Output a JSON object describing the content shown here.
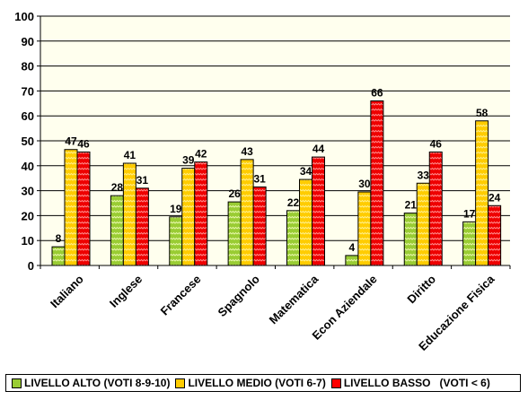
{
  "chart_data": {
    "type": "bar",
    "categories": [
      "Italiano",
      "Inglese",
      "Francese",
      "Spagnolo",
      "Matematica",
      "Econ Aziendale",
      "Diritto",
      "Educazione Fisica"
    ],
    "series": [
      {
        "name": "LIVELLO ALTO (VOTI 8-9-10)",
        "values": [
          8,
          28,
          19,
          26,
          22,
          4,
          21,
          17
        ],
        "plotted": [
          7.5,
          28,
          19.5,
          25.5,
          22,
          4,
          21,
          17.5
        ],
        "color": "#99cc33"
      },
      {
        "name": "LIVELLO MEDIO (VOTI 6-7)",
        "values": [
          47,
          41,
          39,
          43,
          34,
          30,
          33,
          58
        ],
        "plotted": [
          46.5,
          41,
          39,
          42.5,
          34.5,
          29.5,
          33,
          58
        ],
        "color": "#ffcc00"
      },
      {
        "name": "LIVELLO BASSO   (VOTI < 6)",
        "values": [
          46,
          31,
          42,
          31,
          44,
          66,
          46,
          24
        ],
        "plotted": [
          45.5,
          31,
          41.5,
          31.5,
          43.5,
          66,
          45.5,
          24
        ],
        "color": "#ff0000"
      }
    ],
    "yticks": [
      "0",
      "10",
      "20",
      "30",
      "40",
      "50",
      "60",
      "70",
      "80",
      "90",
      "100"
    ],
    "ylim": [
      0,
      100
    ],
    "grid": true,
    "legend": "bottom",
    "plot_background": "#ffffee"
  }
}
